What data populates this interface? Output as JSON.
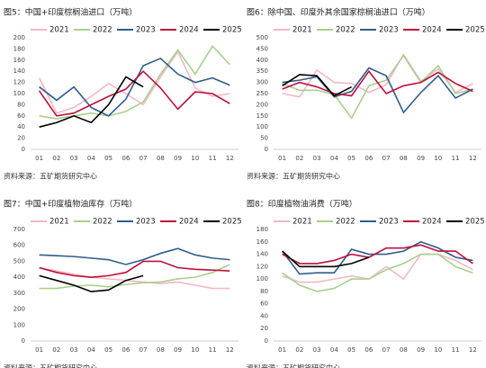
{
  "chart_data": [
    {
      "type": "line",
      "title": "图5：中国+印度棕榈油进口（万吨）",
      "source": "资料来源：五矿期货研究中心",
      "categories": [
        "01",
        "02",
        "03",
        "04",
        "05",
        "06",
        "07",
        "08",
        "09",
        "10",
        "11",
        "12"
      ],
      "ylim": [
        0,
        200
      ],
      "yticks": [
        0,
        20,
        40,
        60,
        80,
        100,
        120,
        140,
        160,
        180,
        200
      ],
      "grid": false,
      "series": [
        {
          "name": "2021",
          "color": "#f2b8c6",
          "values": [
            128,
            65,
            75,
            95,
            118,
            100,
            80,
            130,
            175,
            110,
            95,
            100
          ]
        },
        {
          "name": "2022",
          "color": "#a8d08d",
          "values": [
            60,
            55,
            60,
            65,
            60,
            68,
            85,
            135,
            178,
            135,
            185,
            152
          ]
        },
        {
          "name": "2023",
          "color": "#2f5d8c",
          "values": [
            112,
            88,
            112,
            75,
            60,
            90,
            150,
            163,
            135,
            120,
            128,
            115
          ]
        },
        {
          "name": "2024",
          "color": "#c00f3c",
          "values": [
            105,
            60,
            65,
            80,
            95,
            108,
            140,
            110,
            72,
            103,
            100,
            82
          ]
        },
        {
          "name": "2025",
          "color": "#000000",
          "values": [
            40,
            48,
            60,
            48,
            80,
            130,
            112,
            null,
            null,
            null,
            null,
            null
          ]
        }
      ]
    },
    {
      "type": "line",
      "title": "图6：除中国、印度外其余国家棕榈油进口（万吨）",
      "source": "资料来源：五矿期货研究中心",
      "categories": [
        "01",
        "02",
        "03",
        "04",
        "05",
        "06",
        "07",
        "08",
        "09",
        "10",
        "11",
        "12"
      ],
      "ylim": [
        0,
        500
      ],
      "yticks": [
        0,
        50,
        100,
        150,
        200,
        250,
        300,
        350,
        400,
        450,
        500
      ],
      "grid": false,
      "series": [
        {
          "name": "2021",
          "color": "#f2b8c6",
          "values": [
            250,
            235,
            355,
            300,
            295,
            255,
            290,
            425,
            305,
            360,
            255,
            295
          ]
        },
        {
          "name": "2022",
          "color": "#a8d08d",
          "values": [
            295,
            265,
            265,
            245,
            140,
            285,
            310,
            420,
            300,
            375,
            250,
            270
          ]
        },
        {
          "name": "2023",
          "color": "#2f5d8c",
          "values": [
            300,
            310,
            325,
            235,
            260,
            365,
            330,
            165,
            255,
            330,
            230,
            270
          ]
        },
        {
          "name": "2024",
          "color": "#c00f3c",
          "values": [
            270,
            300,
            280,
            250,
            240,
            350,
            250,
            285,
            300,
            345,
            295,
            260
          ]
        },
        {
          "name": "2025",
          "color": "#000000",
          "values": [
            285,
            335,
            330,
            240,
            280,
            null,
            null,
            null,
            null,
            null,
            null,
            null
          ]
        }
      ]
    },
    {
      "type": "line",
      "title": "图7：中国+印度植物油库存（万吨）",
      "source": "资料来源：五矿期货研究中心",
      "categories": [
        "01",
        "02",
        "03",
        "04",
        "05",
        "06",
        "07",
        "08",
        "09",
        "10",
        "11",
        "12"
      ],
      "ylim": [
        0,
        700
      ],
      "yticks": [
        0,
        100,
        200,
        300,
        400,
        500,
        600,
        700
      ],
      "grid": false,
      "series": [
        {
          "name": "2021",
          "color": "#f2b8c6",
          "values": [
            460,
            440,
            420,
            400,
            390,
            380,
            370,
            360,
            370,
            350,
            330,
            330
          ]
        },
        {
          "name": "2022",
          "color": "#a8d08d",
          "values": [
            330,
            330,
            345,
            350,
            340,
            355,
            365,
            370,
            390,
            400,
            430,
            480
          ]
        },
        {
          "name": "2023",
          "color": "#2f5d8c",
          "values": [
            540,
            535,
            530,
            520,
            510,
            480,
            510,
            550,
            580,
            540,
            520,
            510
          ]
        },
        {
          "name": "2024",
          "color": "#c00f3c",
          "values": [
            460,
            430,
            410,
            400,
            410,
            430,
            500,
            500,
            460,
            450,
            445,
            440
          ]
        },
        {
          "name": "2025",
          "color": "#000000",
          "values": [
            410,
            380,
            350,
            310,
            320,
            380,
            410,
            null,
            null,
            null,
            null,
            null
          ]
        }
      ]
    },
    {
      "type": "line",
      "title": "图8：印度植物油消费（万吨）",
      "source": "资料来源：五矿期货研究中心",
      "categories": [
        "01",
        "02",
        "03",
        "04",
        "05",
        "06",
        "07",
        "08",
        "09",
        "10",
        "11",
        "12"
      ],
      "ylim": [
        0,
        180
      ],
      "yticks": [
        0,
        20,
        40,
        60,
        80,
        100,
        120,
        140,
        160,
        180
      ],
      "grid": false,
      "series": [
        {
          "name": "2021",
          "color": "#f2b8c6",
          "values": [
            105,
            95,
            95,
            100,
            105,
            100,
            120,
            100,
            140,
            140,
            130,
            115
          ]
        },
        {
          "name": "2022",
          "color": "#a8d08d",
          "values": [
            110,
            90,
            80,
            85,
            100,
            100,
            115,
            125,
            140,
            140,
            120,
            110
          ]
        },
        {
          "name": "2023",
          "color": "#2f5d8c",
          "values": [
            145,
            108,
            110,
            110,
            148,
            140,
            140,
            145,
            160,
            150,
            135,
            130
          ]
        },
        {
          "name": "2024",
          "color": "#c00f3c",
          "values": [
            140,
            125,
            125,
            130,
            140,
            135,
            150,
            150,
            155,
            145,
            145,
            125
          ]
        },
        {
          "name": "2025",
          "color": "#000000",
          "values": [
            145,
            120,
            120,
            120,
            125,
            135,
            null,
            null,
            null,
            null,
            null,
            null
          ]
        }
      ]
    }
  ]
}
